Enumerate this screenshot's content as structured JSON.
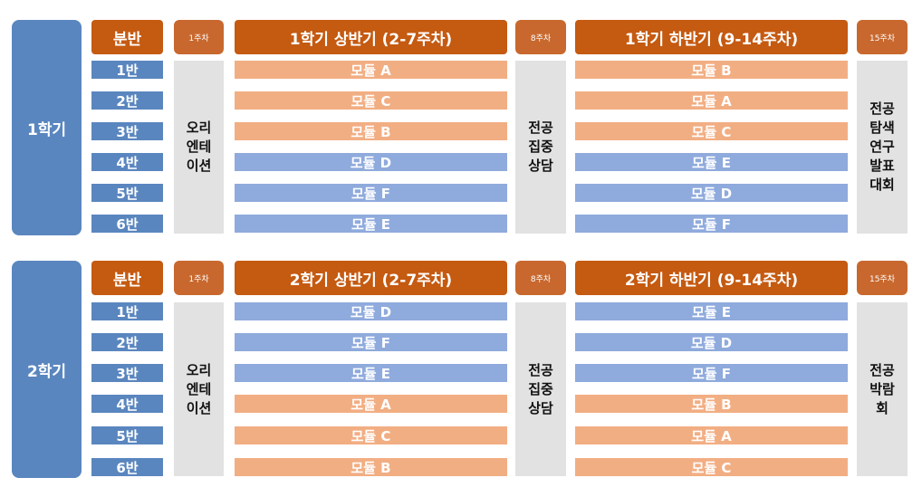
{
  "semesters": [
    {
      "label": "1학기",
      "class_header": "분반",
      "week1": "1주차",
      "first_half_title": "1학기 상반기 (2-7주차)",
      "week8": "8주차",
      "second_half_title": "1학기 하반기 (9-14주차)",
      "week15": "15주차",
      "classes": [
        "1반",
        "2반",
        "3반",
        "4반",
        "5반",
        "6반"
      ],
      "orientation": "오리\n엔테\n이션",
      "counseling": "전공\n집중\n상담",
      "final_event": "전공\n탐색\n연구\n발표\n대회",
      "first_half_modules": [
        {
          "label": "모듈 A",
          "color": "orange"
        },
        {
          "label": "모듈 C",
          "color": "orange"
        },
        {
          "label": "모듈 B",
          "color": "orange"
        },
        {
          "label": "모듈 D",
          "color": "blue"
        },
        {
          "label": "모듈 F",
          "color": "blue"
        },
        {
          "label": "모듈 E",
          "color": "blue"
        }
      ],
      "second_half_modules": [
        {
          "label": "모듈 B",
          "color": "orange"
        },
        {
          "label": "모듈 A",
          "color": "orange"
        },
        {
          "label": "모듈 C",
          "color": "orange"
        },
        {
          "label": "모듈 E",
          "color": "blue"
        },
        {
          "label": "모듈 D",
          "color": "blue"
        },
        {
          "label": "모듈 F",
          "color": "blue"
        }
      ]
    },
    {
      "label": "2학기",
      "class_header": "분반",
      "week1": "1주차",
      "first_half_title": "2학기 상반기 (2-7주차)",
      "week8": "8주차",
      "second_half_title": "2학기 하반기 (9-14주차)",
      "week15": "15주차",
      "classes": [
        "1반",
        "2반",
        "3반",
        "4반",
        "5반",
        "6반"
      ],
      "orientation": "오리\n엔테\n이션",
      "counseling": "전공\n집중\n상담",
      "final_event": "전공\n박람\n회",
      "first_half_modules": [
        {
          "label": "모듈 D",
          "color": "blue"
        },
        {
          "label": "모듈 F",
          "color": "blue"
        },
        {
          "label": "모듈 E",
          "color": "blue"
        },
        {
          "label": "모듈 A",
          "color": "orange"
        },
        {
          "label": "모듈 C",
          "color": "orange"
        },
        {
          "label": "모듈 B",
          "color": "orange"
        }
      ],
      "second_half_modules": [
        {
          "label": "모듈 E",
          "color": "blue"
        },
        {
          "label": "모듈 D",
          "color": "blue"
        },
        {
          "label": "모듈 F",
          "color": "blue"
        },
        {
          "label": "모듈 B",
          "color": "orange"
        },
        {
          "label": "모듈 A",
          "color": "orange"
        },
        {
          "label": "모듈 C",
          "color": "orange"
        }
      ]
    }
  ],
  "colors": {
    "semester_blue": "#5a86bf",
    "header_orange": "#c55a11",
    "module_orange": "#f2ae83",
    "module_blue": "#8faadc",
    "gray_cell": "#e2e2e2"
  }
}
